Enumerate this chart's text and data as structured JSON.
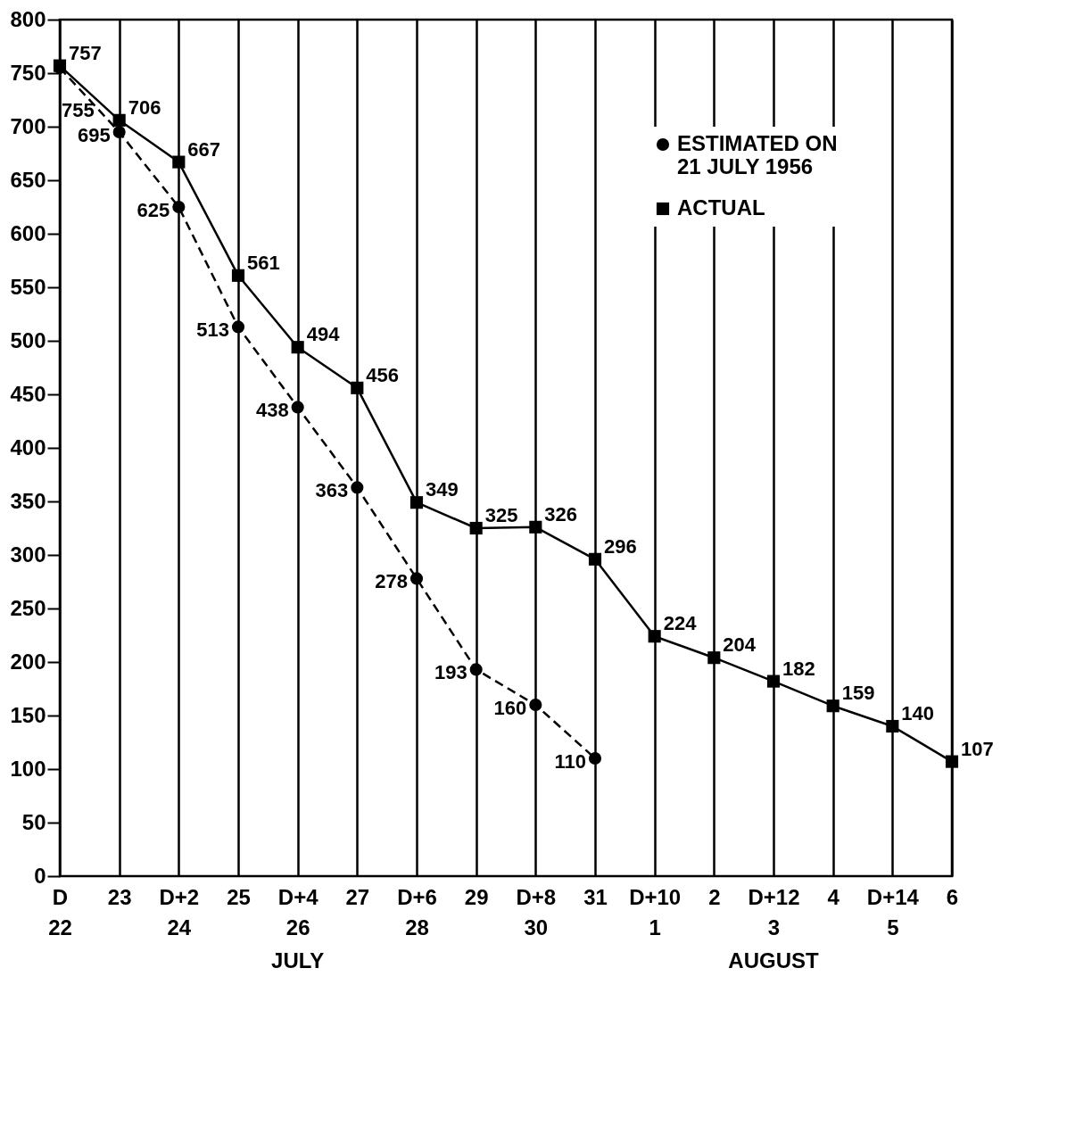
{
  "chart_data": {
    "type": "line",
    "categories": [
      "D\n22",
      "23",
      "D+2\n24",
      "25",
      "D+4\n26",
      "27",
      "D+6\n28",
      "29",
      "D+8\n30",
      "31",
      "D+10\n1",
      "2",
      "D+12\n3",
      "4",
      "D+14\n5",
      "6"
    ],
    "series": [
      {
        "name": "ESTIMATED ON\n21 JULY 1956",
        "color": "#000000",
        "marker": "circle",
        "line_style": "dashed",
        "values": [
          755,
          695,
          625,
          513,
          438,
          363,
          278,
          193,
          160,
          110,
          null,
          null,
          null,
          null,
          null,
          null
        ]
      },
      {
        "name": "ACTUAL",
        "color": "#000000",
        "marker": "square",
        "line_style": "solid",
        "values": [
          757,
          706,
          667,
          561,
          494,
          456,
          349,
          325,
          326,
          296,
          224,
          204,
          182,
          159,
          140,
          107
        ]
      }
    ],
    "ylim": [
      0,
      800
    ],
    "yticks": [
      0,
      50,
      100,
      150,
      200,
      250,
      300,
      350,
      400,
      450,
      500,
      550,
      600,
      650,
      700,
      750,
      800
    ],
    "grid": "x",
    "legend": "top right",
    "data_labels": true,
    "annotations": [
      "JULY",
      "AUGUST"
    ]
  }
}
